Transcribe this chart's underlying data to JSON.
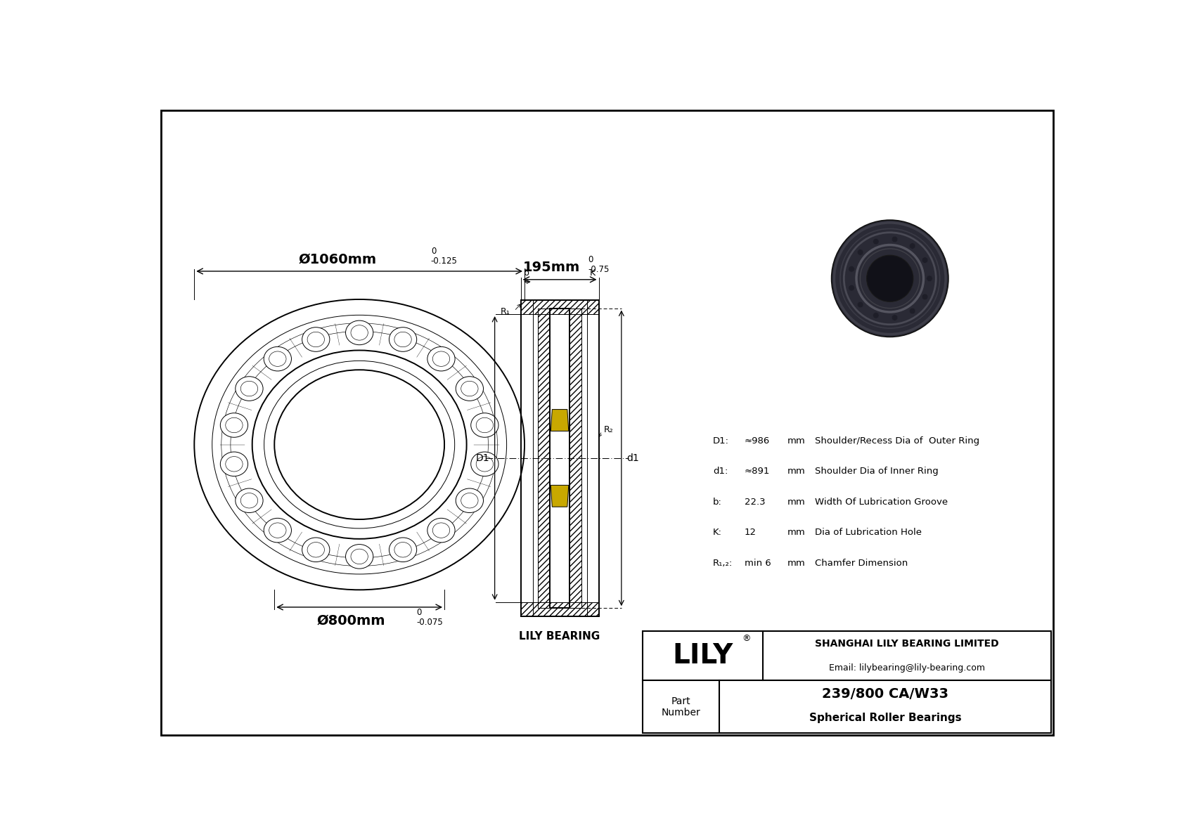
{
  "bg_color": "#ffffff",
  "line_color": "#000000",
  "title": "239/800 CA/W33",
  "subtitle": "Spherical Roller Bearings",
  "company": "SHANGHAI LILY BEARING LIMITED",
  "email": "Email: lilybearing@lily-bearing.com",
  "specs": [
    [
      "D1:",
      "≈986",
      "mm",
      "Shoulder/Recess Dia of  Outer Ring"
    ],
    [
      "d1:",
      "≈891",
      "mm",
      "Shoulder Dia of Inner Ring"
    ],
    [
      "b:",
      "22.3",
      "mm",
      "Width Of Lubrication Groove"
    ],
    [
      "K:",
      "12",
      "mm",
      "Dia of Lubrication Hole"
    ],
    [
      "R₁,₂:",
      "min 6",
      "mm",
      "Chamfer Dimension"
    ]
  ],
  "outer_dia": "Ø1060mm",
  "outer_tol_upper": "0",
  "outer_tol_lower": "-0.125",
  "inner_dia": "Ø800mm",
  "inner_tol_upper": "0",
  "inner_tol_lower": "-0.075",
  "width_dim": "195mm",
  "width_tol_upper": "0",
  "width_tol_lower": "-0.75",
  "yellow_roller": "#c8a800",
  "photo_body": "#2a2a35",
  "photo_ring": "#383845",
  "photo_bore": "#111118"
}
